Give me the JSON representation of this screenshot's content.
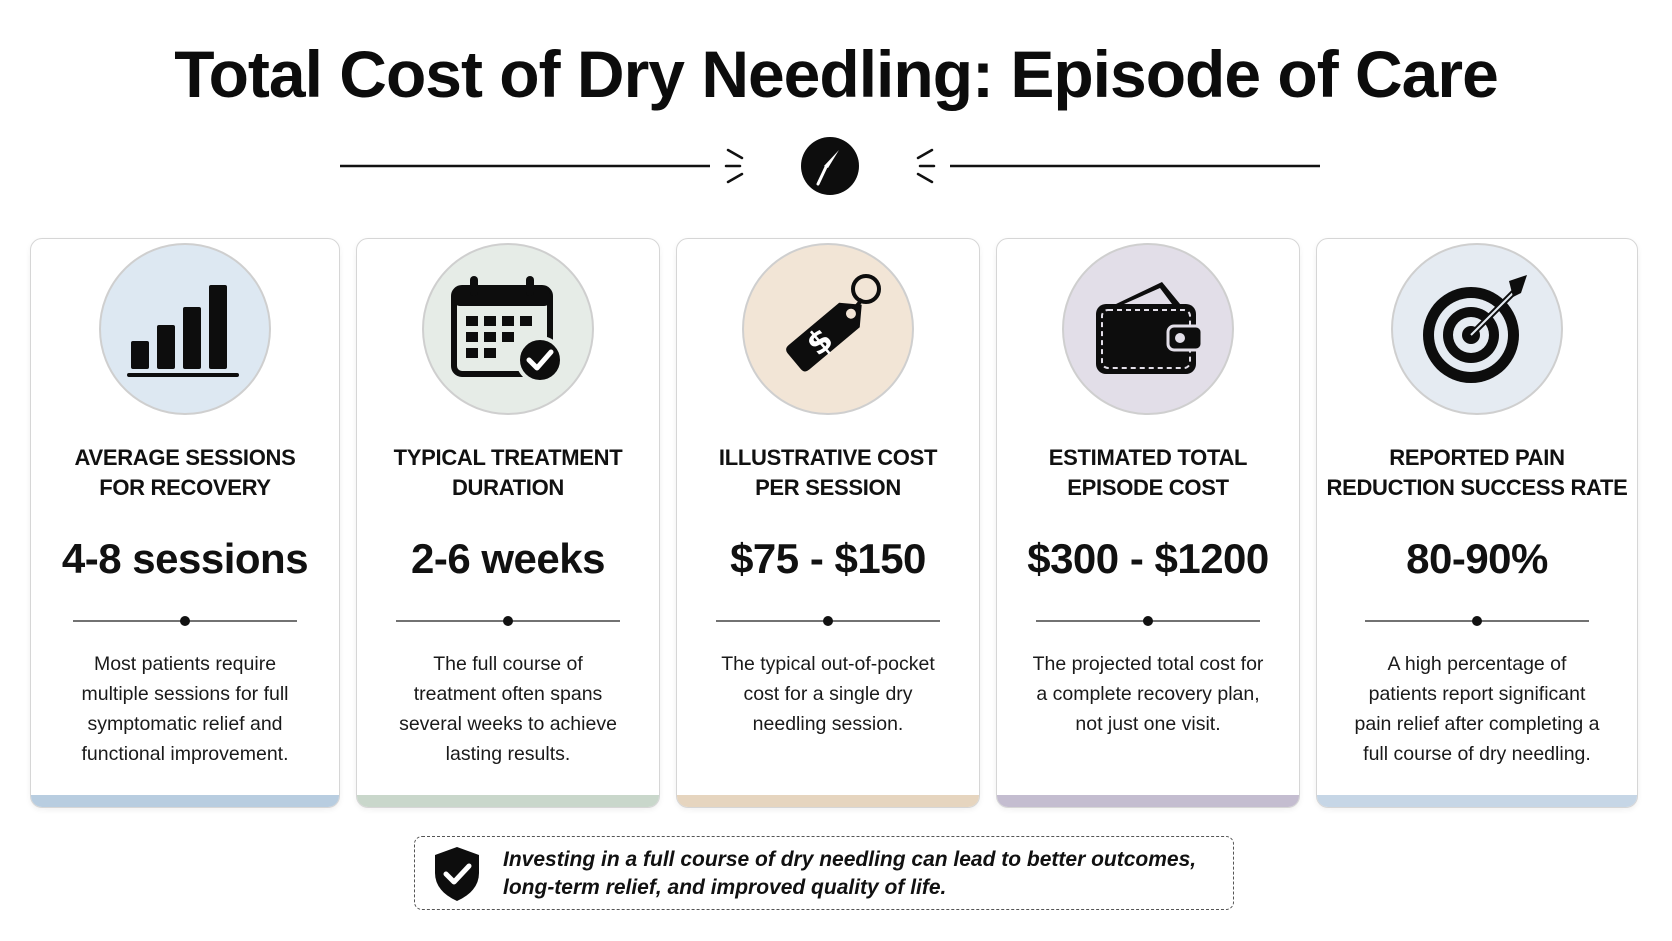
{
  "title": "Total Cost of Dry Needling: Episode of Care",
  "cards": [
    {
      "label_line1": "Average Sessions",
      "label_line2": "for Recovery",
      "value": "4-8 sessions",
      "description": "Most patients require multiple sessions for full symptomatic relief and functional improvement.",
      "icon": "bar-chart-icon",
      "circle_color": "#dde8f2",
      "band_color": "#b8cde0"
    },
    {
      "label_line1": "Typical Treatment",
      "label_line2": "Duration",
      "value": "2-6 weeks",
      "description": "The full course of treatment often spans several weeks to achieve lasting results.",
      "icon": "calendar-check-icon",
      "circle_color": "#e6ece7",
      "band_color": "#c9d7cb"
    },
    {
      "label_line1": "Illustrative Cost",
      "label_line2": "per Session",
      "value": "$75 - $150",
      "description": "The typical out-of-pocket cost for a single dry needling session.",
      "icon": "price-tag-icon",
      "circle_color": "#f2e5d6",
      "band_color": "#e6d5bf"
    },
    {
      "label_line1": "Estimated Total",
      "label_line2": "Episode Cost",
      "value": "$300 - $1200",
      "description": "The projected total cost for a complete recovery plan, not just one visit.",
      "icon": "wallet-icon",
      "circle_color": "#e2dee8",
      "band_color": "#c4bdd0"
    },
    {
      "label_line1": "Reported Pain",
      "label_line2": "Reduction Success Rate",
      "value": "80-90%",
      "description": "A high percentage of patients report significant pain relief after completing a full course of dry needling.",
      "icon": "target-icon",
      "circle_color": "#e5ebf2",
      "band_color": "#c6d6e6"
    }
  ],
  "callout": {
    "text": "Investing in a full course of dry needling can lead to better outcomes, long-term relief, and improved quality of life.",
    "icon": "shield-check-icon"
  },
  "divider_icon": "needle-icon"
}
